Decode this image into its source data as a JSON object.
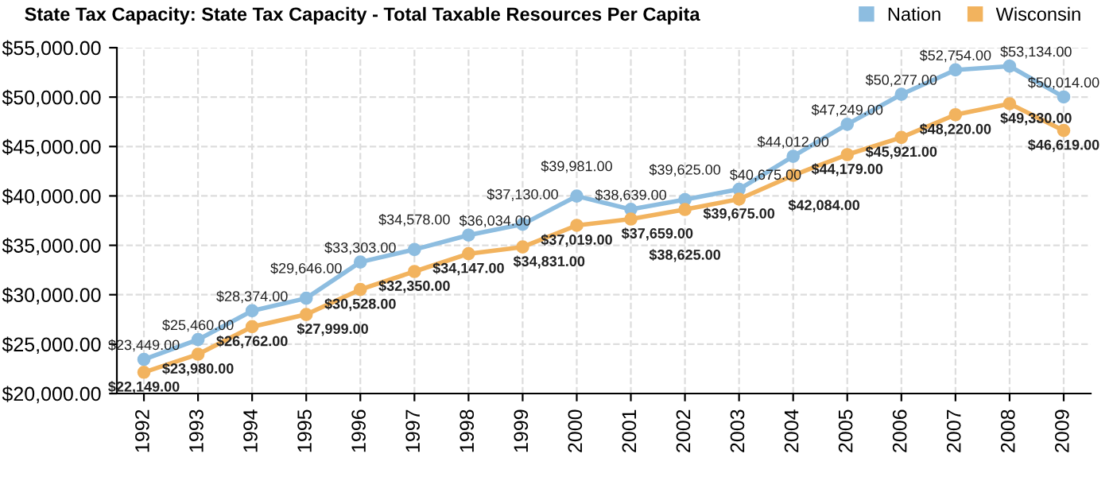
{
  "chart_data": {
    "type": "line",
    "title": "State Tax Capacity: State Tax Capacity - Total Taxable Resources Per Capita",
    "categories": [
      "1992",
      "1993",
      "1994",
      "1995",
      "1996",
      "1997",
      "1998",
      "1999",
      "2000",
      "2001",
      "2002",
      "2003",
      "2004",
      "2005",
      "2006",
      "2007",
      "2008",
      "2009"
    ],
    "series": [
      {
        "name": "Nation",
        "color": "#8dbde0",
        "values": [
          23449,
          25460,
          28374,
          29646,
          33303,
          34578,
          36034,
          37130,
          39981,
          38639,
          39625,
          40675,
          44012,
          47249,
          50277,
          52754,
          53134,
          50014
        ],
        "value_labels": [
          "$23,449.00",
          "$25,460.00",
          "$28,374.00",
          "$29,646.00",
          "$33,303.00",
          "$34,578.00",
          "$36,034.00",
          "$37,130.00",
          "$39,981.00",
          "$38,639.00",
          "$39,625.00",
          "$40,675.00",
          "$44,012.00",
          "$47,249.00",
          "$50,277.00",
          "$52,754.00",
          "$53,134.00",
          "$50,014.00"
        ]
      },
      {
        "name": "Wisconsin",
        "color": "#f2b35e",
        "values": [
          22149,
          23980,
          26762,
          27999,
          30528,
          32350,
          34147,
          34831,
          37019,
          37659,
          38625,
          39675,
          42084,
          44179,
          45921,
          48220,
          49330,
          46619
        ],
        "value_labels": [
          "$22,149.00",
          "$23,980.00",
          "$26,762.00",
          "$27,999.00",
          "$30,528.00",
          "$32,350.00",
          "$34,147.00",
          "$34,831.00",
          "$37,019.00",
          "$37,659.00",
          "$38,625.00",
          "$39,675.00",
          "$42,084.00",
          "$44,179.00",
          "$45,921.00",
          "$48,220.00",
          "$49,330.00",
          "$46,619.00"
        ]
      }
    ],
    "ylim": [
      20000,
      55000
    ],
    "yticks": [
      {
        "value": 20000,
        "label": "$20,000.00"
      },
      {
        "value": 25000,
        "label": "$25,000.00"
      },
      {
        "value": 30000,
        "label": "$30,000.00"
      },
      {
        "value": 35000,
        "label": "$35,000.00"
      },
      {
        "value": 40000,
        "label": "$40,000.00"
      },
      {
        "value": 45000,
        "label": "$45,000.00"
      },
      {
        "value": 50000,
        "label": "$50,000.00"
      },
      {
        "value": 55000,
        "label": "$55,000.00"
      }
    ],
    "grid": true,
    "legend": "top right",
    "marker": "circle",
    "line_style": "solid"
  }
}
